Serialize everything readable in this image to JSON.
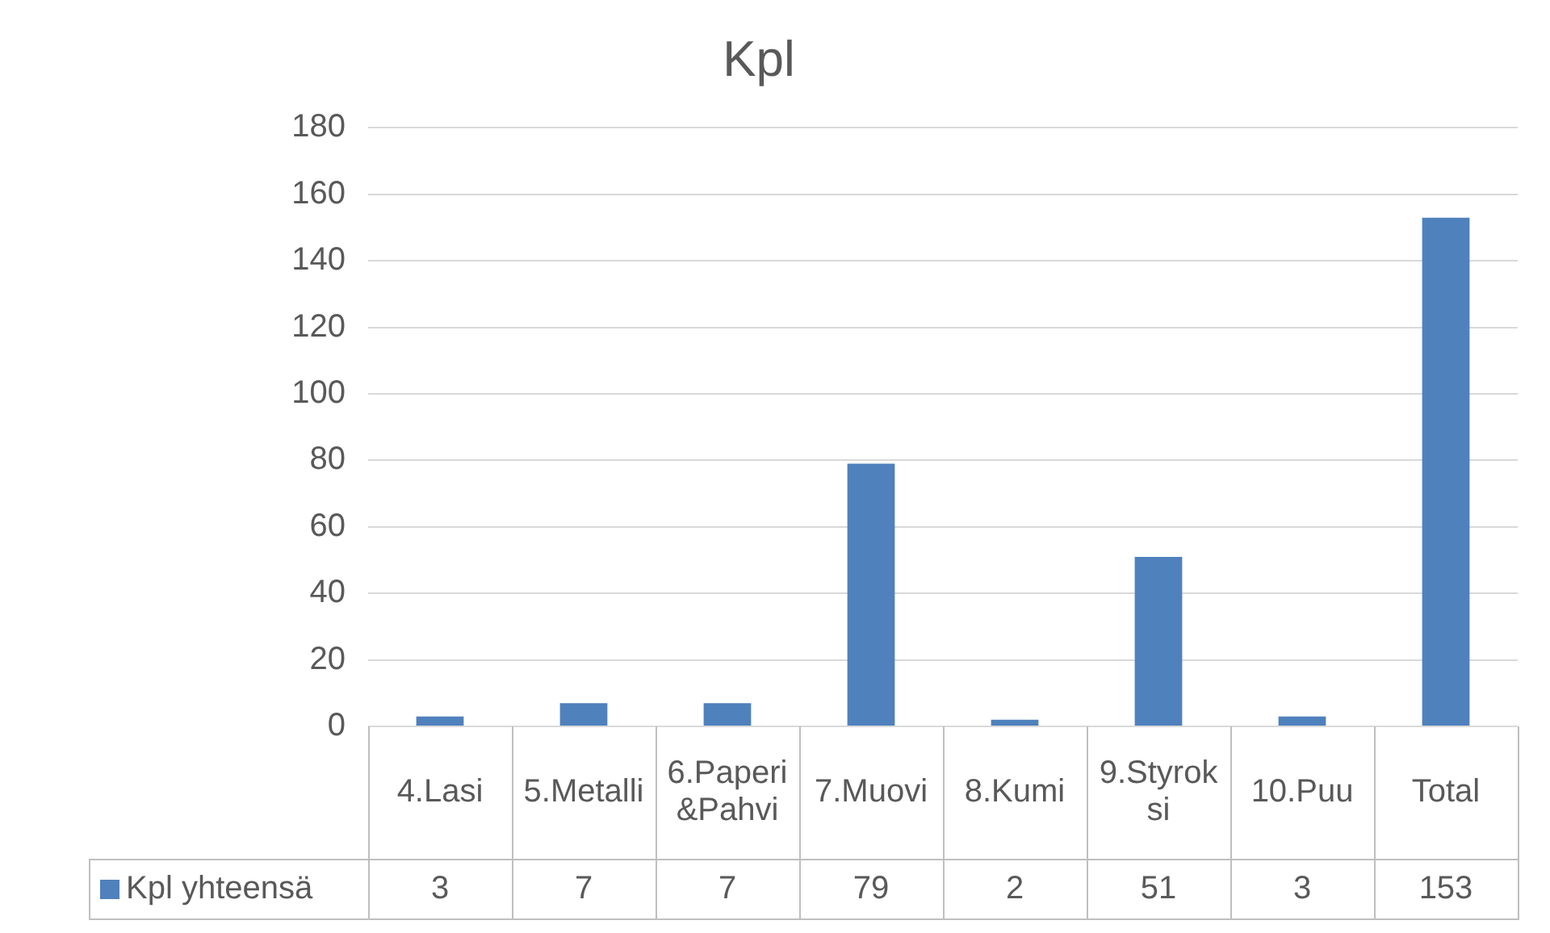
{
  "chart_data": {
    "type": "bar",
    "title": "Kpl",
    "categories": [
      "4.Lasi",
      "5.Metalli",
      "6.Paperi&Pahvi",
      "7.Muovi",
      "8.Kumi",
      "9.Styroksi",
      "10.Puu",
      "Total"
    ],
    "series": [
      {
        "name": "Kpl yhteensä",
        "color": "#4f81bd",
        "values": [
          3,
          7,
          7,
          79,
          2,
          51,
          3,
          153
        ]
      }
    ],
    "ylim": [
      0,
      180
    ],
    "yticks": [
      0,
      20,
      40,
      60,
      80,
      100,
      120,
      140,
      160,
      180
    ],
    "grid": "y",
    "legend": "bottom",
    "data_labels": true
  }
}
